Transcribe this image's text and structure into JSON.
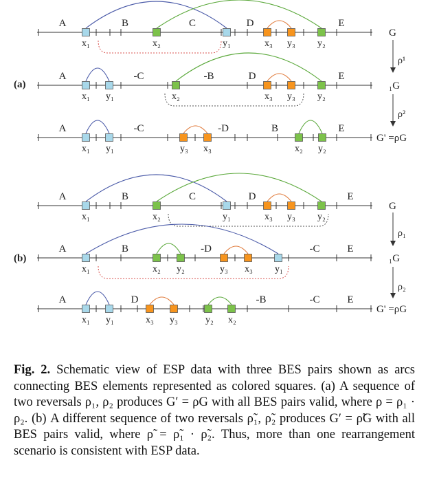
{
  "colors": {
    "blue_arc": "#4a5aa8",
    "green_arc": "#5aa83a",
    "orange_arc": "#e07a3a",
    "red_dashed": "#d9534f",
    "light_blue_fill": "#a8d8ea",
    "green_fill": "#7cc24a",
    "orange_fill": "#f7941d",
    "line": "#333333"
  },
  "panel_labels": {
    "a": "(a)",
    "b": "(b)"
  },
  "rho_steps": {
    "a": {
      "step1": "ρ¹",
      "step2": "ρ²"
    },
    "b": {
      "step1": "ρ₁",
      "step2": "ρ₂"
    }
  },
  "rows": [
    {
      "genome": "G",
      "segments": [
        "A",
        "B",
        "C",
        "D",
        "E"
      ],
      "bes": [
        "x₁",
        "x₂",
        "y₁",
        "x₃",
        "y₃",
        "y₂"
      ]
    },
    {
      "genome": "₁G",
      "segments": [
        "A",
        "-C",
        "-B",
        "D",
        "E"
      ],
      "bes": [
        "x₁",
        "y₁",
        "x₂",
        "x₃",
        "y₃",
        "y₂"
      ]
    },
    {
      "genome": "G' =ρG",
      "segments": [
        "A",
        "-C",
        "-D",
        "B",
        "E"
      ],
      "bes": [
        "x₁",
        "y₁",
        "y₃",
        "x₃",
        "x₂",
        "y₂"
      ]
    },
    {
      "genome": "G",
      "segments": [
        "A",
        "B",
        "C",
        "D",
        "E"
      ],
      "bes": [
        "x₁",
        "x₂",
        "y₁",
        "x₃",
        "y₃",
        "y₂"
      ]
    },
    {
      "genome": "₁G",
      "segments": [
        "A",
        "B",
        "-D",
        "-C",
        "E"
      ],
      "bes": [
        "x₁",
        "x₂",
        "y₂",
        "y₃",
        "x₃",
        "y₁"
      ]
    },
    {
      "genome": "G' =ρG",
      "segments": [
        "A",
        "D",
        "-B",
        "-C",
        "E"
      ],
      "bes": [
        "x₁",
        "y₁",
        "x₃",
        "y₃",
        "y₂",
        "x₂"
      ]
    }
  ],
  "caption": {
    "fig_label": "Fig. 2.",
    "text": "Schematic view of ESP data with three BES pairs shown as arcs connecting BES elements represented as colored squares. (a) A sequence of two reversals ρ₁, ρ₂ produces G′ = ρG with all BES pairs valid, where ρ = ρ₁ · ρ₂. (b) A different sequence of two reversals ρ̃₁, ρ̃₂ produces G′ = ρ̃G with all BES pairs valid, where ρ̃ = ρ̃₁ · ρ̃₂. Thus, more than one rearrangement scenario is consistent with ESP data."
  }
}
